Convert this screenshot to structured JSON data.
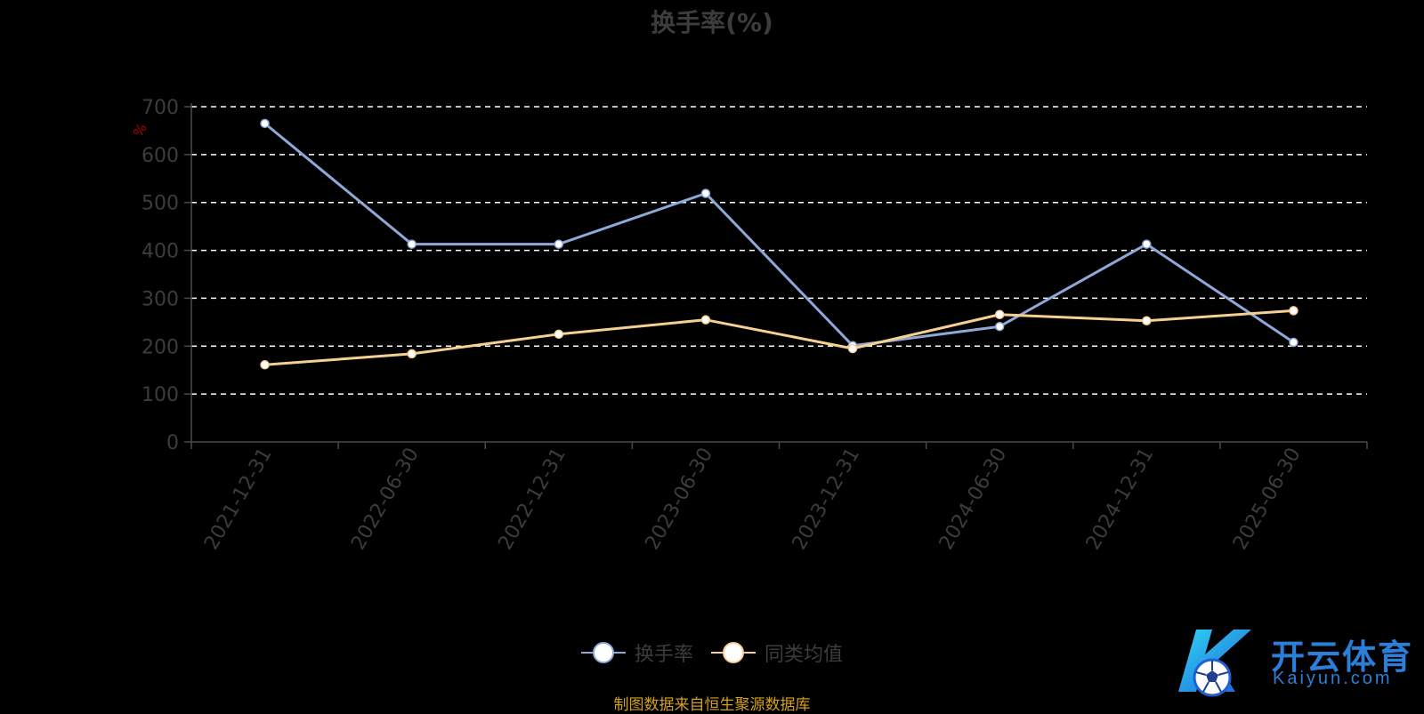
{
  "chart_data": {
    "type": "line",
    "title": "换手率(%)",
    "ylabel": "%",
    "xlabel": "",
    "ylim": [
      0,
      700
    ],
    "yticks": [
      "0",
      "100",
      "200",
      "300",
      "400",
      "500",
      "600",
      "700"
    ],
    "categories": [
      "2021-12-31",
      "2022-06-30",
      "2022-12-31",
      "2023-06-30",
      "2023-12-31",
      "2024-06-30",
      "2024-12-31",
      "2025-06-30"
    ],
    "series": [
      {
        "name": "换手率",
        "color": "#8fa8d8",
        "values": [
          665,
          413,
          413,
          519,
          201,
          241,
          413,
          208
        ]
      },
      {
        "name": "同类均值",
        "color": "#f6d092",
        "values": [
          161,
          184,
          225,
          255,
          195,
          266,
          253,
          274
        ]
      }
    ],
    "grid": "horizontal-dashed",
    "legend_position": "bottom-center"
  },
  "footer": {
    "source_note": "制图数据来自恒生聚源数据库"
  },
  "logo": {
    "name_cn": "开云体育",
    "name_en": "Kaiyun.com",
    "icon": "soccer-ball-icon"
  }
}
